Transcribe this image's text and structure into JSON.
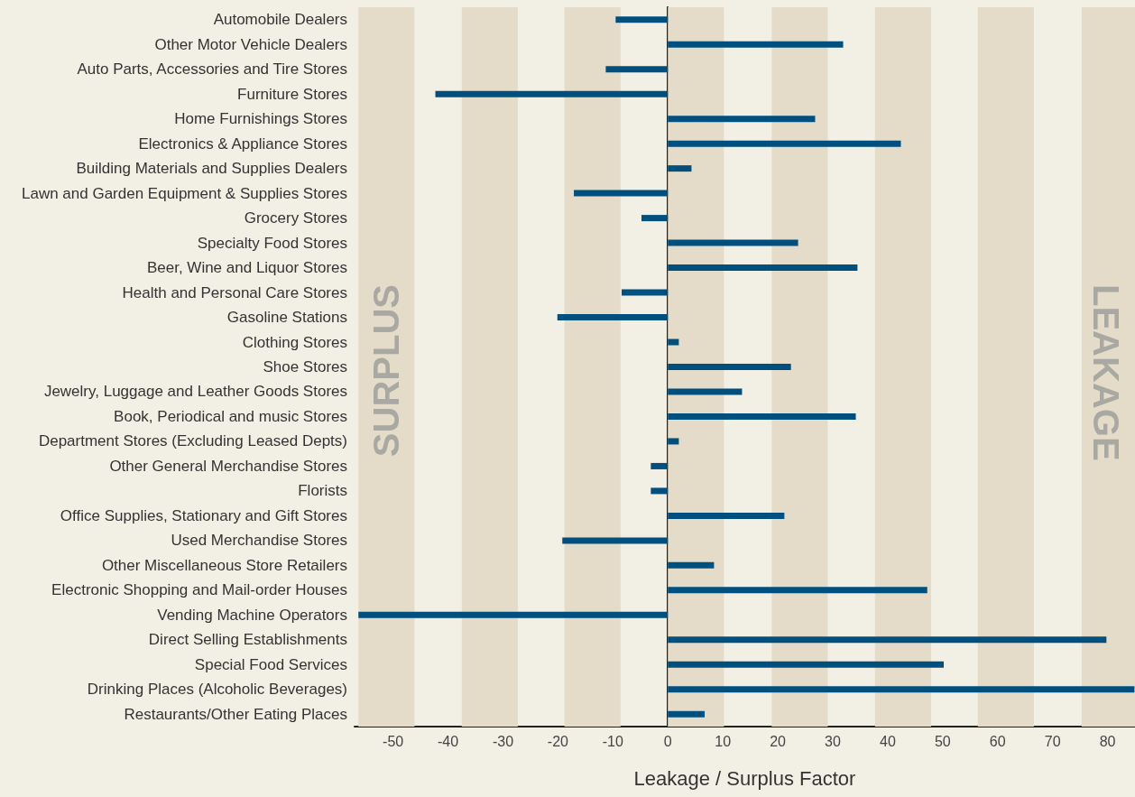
{
  "chart_data": {
    "type": "bar",
    "orientation": "horizontal",
    "xlabel": "Leakage / Surplus Factor",
    "categories": [
      "Automobile Dealers",
      "Other Motor Vehicle Dealers",
      "Auto Parts, Accessories and Tire Stores",
      "Furniture Stores",
      "Home Furnishings Stores",
      "Electronics & Appliance Stores",
      "Building Materials and Supplies Dealers",
      "Lawn and Garden Equipment & Supplies Stores",
      "Grocery Stores",
      "Specialty Food Stores",
      "Beer, Wine and Liquor Stores",
      "Health and Personal Care Stores",
      "Gasoline Stations",
      "Clothing Stores",
      "Shoe Stores",
      "Jewelry, Luggage and Leather Goods Stores",
      "Book, Periodical and music Stores",
      "Department Stores (Excluding Leased Depts)",
      "Other General Merchandise Stores",
      "Florists",
      "Office Supplies, Stationary and Gift Stores",
      "Used Merchandise Stores",
      "Other Miscellaneous Store Retailers",
      "Electronic Shopping and Mail-order Houses",
      "Vending Machine Operators",
      "Direct Selling Establishments",
      "Special Food Services",
      "Drinking Places (Alcoholic Beverages)",
      "Restaurants/Other Eating Places"
    ],
    "values": [
      -9.5,
      31.9,
      -11.3,
      -42.3,
      26.8,
      42.4,
      4.3,
      -17.1,
      -4.8,
      23.7,
      34.5,
      -8.4,
      -20.1,
      2,
      22.4,
      13.5,
      34.2,
      2,
      -3.1,
      -3.1,
      21.2,
      -19.2,
      8.4,
      47.2,
      -56.3,
      79.8,
      50.2,
      84.9,
      6.7
    ],
    "color": "#00507f",
    "xlim": [
      -57,
      85
    ],
    "xticks": [
      -50,
      -40,
      -30,
      -20,
      -10,
      0,
      10,
      20,
      30,
      40,
      50,
      60,
      70,
      80
    ],
    "annotations": [
      "SURPLUS",
      "LEAKAGE"
    ],
    "bands": [
      {
        "axis": "x",
        "from": -56.3,
        "to": -46.1,
        "color": "#e4dcc8"
      },
      {
        "axis": "x",
        "from": -37.5,
        "to": -27.3,
        "color": "#e4dcc8"
      },
      {
        "axis": "x",
        "from": -18.8,
        "to": -8.6,
        "color": "#e4dcc8"
      },
      {
        "axis": "x",
        "from": 0,
        "to": 10.2,
        "color": "#e4dcc8"
      },
      {
        "axis": "x",
        "from": 18.9,
        "to": 29.1,
        "color": "#e4dcc8"
      },
      {
        "axis": "x",
        "from": 37.7,
        "to": 47.9,
        "color": "#e4dcc8"
      },
      {
        "axis": "x",
        "from": 56.4,
        "to": 66.6,
        "color": "#e4dcc8"
      },
      {
        "axis": "x",
        "from": 75.3,
        "to": 85,
        "color": "#e4dcc8"
      }
    ]
  }
}
